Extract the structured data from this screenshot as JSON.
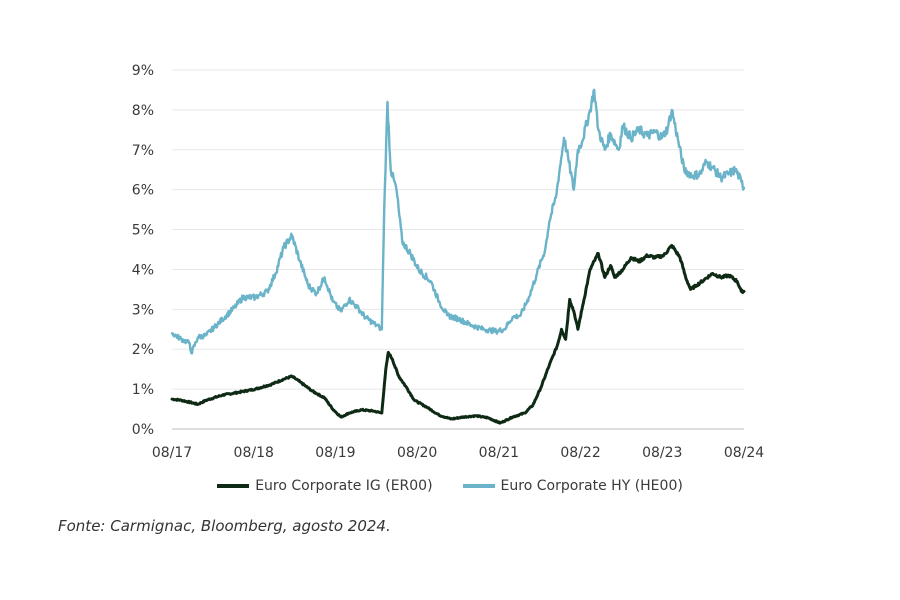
{
  "chart_data": {
    "type": "line",
    "title": "",
    "xlabel": "",
    "ylabel": "",
    "ylim": [
      0,
      9
    ],
    "xlim": [
      2017.583,
      2024.583
    ],
    "yticks": [
      "0%",
      "1%",
      "2%",
      "3%",
      "4%",
      "5%",
      "6%",
      "7%",
      "8%",
      "9%"
    ],
    "xticks": [
      {
        "label": "08/17",
        "t": 2017.583
      },
      {
        "label": "08/18",
        "t": 2018.583
      },
      {
        "label": "08/19",
        "t": 2019.583
      },
      {
        "label": "08/20",
        "t": 2020.583
      },
      {
        "label": "08/21",
        "t": 2021.583
      },
      {
        "label": "08/22",
        "t": 2022.583
      },
      {
        "label": "08/23",
        "t": 2023.583
      },
      {
        "label": "08/24",
        "t": 2024.583
      }
    ],
    "gridlines": "horizontal",
    "legend_position": "bottom",
    "series": [
      {
        "name": "Euro Corporate IG (ER00)",
        "color": "#0f2a14",
        "points": [
          [
            2017.583,
            0.75
          ],
          [
            2017.7,
            0.72
          ],
          [
            2017.9,
            0.62
          ],
          [
            2018.0,
            0.72
          ],
          [
            2018.2,
            0.85
          ],
          [
            2018.4,
            0.92
          ],
          [
            2018.6,
            1.0
          ],
          [
            2018.8,
            1.12
          ],
          [
            2018.95,
            1.25
          ],
          [
            2019.05,
            1.32
          ],
          [
            2019.15,
            1.18
          ],
          [
            2019.3,
            0.95
          ],
          [
            2019.45,
            0.78
          ],
          [
            2019.55,
            0.5
          ],
          [
            2019.65,
            0.3
          ],
          [
            2019.75,
            0.4
          ],
          [
            2019.9,
            0.48
          ],
          [
            2020.05,
            0.45
          ],
          [
            2020.15,
            0.4
          ],
          [
            2020.2,
            1.5
          ],
          [
            2020.23,
            1.92
          ],
          [
            2020.28,
            1.75
          ],
          [
            2020.35,
            1.35
          ],
          [
            2020.45,
            1.05
          ],
          [
            2020.55,
            0.72
          ],
          [
            2020.7,
            0.55
          ],
          [
            2020.85,
            0.35
          ],
          [
            2021.0,
            0.25
          ],
          [
            2021.15,
            0.3
          ],
          [
            2021.3,
            0.33
          ],
          [
            2021.45,
            0.28
          ],
          [
            2021.6,
            0.15
          ],
          [
            2021.75,
            0.3
          ],
          [
            2021.9,
            0.4
          ],
          [
            2022.0,
            0.6
          ],
          [
            2022.1,
            1.05
          ],
          [
            2022.2,
            1.6
          ],
          [
            2022.3,
            2.1
          ],
          [
            2022.35,
            2.5
          ],
          [
            2022.4,
            2.25
          ],
          [
            2022.45,
            3.25
          ],
          [
            2022.5,
            2.95
          ],
          [
            2022.55,
            2.5
          ],
          [
            2022.6,
            3.0
          ],
          [
            2022.7,
            4.0
          ],
          [
            2022.8,
            4.4
          ],
          [
            2022.88,
            3.8
          ],
          [
            2022.95,
            4.1
          ],
          [
            2023.0,
            3.8
          ],
          [
            2023.1,
            4.0
          ],
          [
            2023.2,
            4.3
          ],
          [
            2023.3,
            4.2
          ],
          [
            2023.4,
            4.35
          ],
          [
            2023.5,
            4.3
          ],
          [
            2023.6,
            4.35
          ],
          [
            2023.7,
            4.6
          ],
          [
            2023.8,
            4.3
          ],
          [
            2023.87,
            3.8
          ],
          [
            2023.93,
            3.5
          ],
          [
            2024.0,
            3.6
          ],
          [
            2024.1,
            3.75
          ],
          [
            2024.2,
            3.9
          ],
          [
            2024.3,
            3.8
          ],
          [
            2024.4,
            3.85
          ],
          [
            2024.5,
            3.7
          ],
          [
            2024.55,
            3.45
          ],
          [
            2024.583,
            3.45
          ]
        ]
      },
      {
        "name": "Euro Corporate HY (HE00)",
        "color": "#6bb3c9",
        "points": [
          [
            2017.583,
            2.4
          ],
          [
            2017.7,
            2.25
          ],
          [
            2017.8,
            2.15
          ],
          [
            2017.82,
            1.9
          ],
          [
            2017.9,
            2.3
          ],
          [
            2018.0,
            2.35
          ],
          [
            2018.1,
            2.55
          ],
          [
            2018.2,
            2.75
          ],
          [
            2018.35,
            3.05
          ],
          [
            2018.45,
            3.3
          ],
          [
            2018.6,
            3.3
          ],
          [
            2018.75,
            3.45
          ],
          [
            2018.85,
            3.9
          ],
          [
            2018.95,
            4.55
          ],
          [
            2019.05,
            4.85
          ],
          [
            2019.15,
            4.2
          ],
          [
            2019.25,
            3.6
          ],
          [
            2019.35,
            3.4
          ],
          [
            2019.45,
            3.8
          ],
          [
            2019.55,
            3.2
          ],
          [
            2019.65,
            2.95
          ],
          [
            2019.75,
            3.25
          ],
          [
            2019.85,
            3.05
          ],
          [
            2019.95,
            2.8
          ],
          [
            2020.05,
            2.65
          ],
          [
            2020.12,
            2.55
          ],
          [
            2020.15,
            2.5
          ],
          [
            2020.18,
            5.5
          ],
          [
            2020.22,
            8.2
          ],
          [
            2020.26,
            6.5
          ],
          [
            2020.33,
            6.0
          ],
          [
            2020.4,
            4.7
          ],
          [
            2020.5,
            4.4
          ],
          [
            2020.6,
            4.0
          ],
          [
            2020.75,
            3.7
          ],
          [
            2020.85,
            3.2
          ],
          [
            2020.95,
            2.85
          ],
          [
            2021.1,
            2.75
          ],
          [
            2021.25,
            2.6
          ],
          [
            2021.4,
            2.5
          ],
          [
            2021.55,
            2.45
          ],
          [
            2021.65,
            2.5
          ],
          [
            2021.75,
            2.8
          ],
          [
            2021.85,
            2.85
          ],
          [
            2021.95,
            3.3
          ],
          [
            2022.05,
            3.9
          ],
          [
            2022.15,
            4.5
          ],
          [
            2022.2,
            5.2
          ],
          [
            2022.28,
            5.8
          ],
          [
            2022.38,
            7.3
          ],
          [
            2022.43,
            6.8
          ],
          [
            2022.5,
            6.0
          ],
          [
            2022.55,
            7.0
          ],
          [
            2022.6,
            7.2
          ],
          [
            2022.7,
            8.0
          ],
          [
            2022.75,
            8.5
          ],
          [
            2022.8,
            7.5
          ],
          [
            2022.88,
            7.0
          ],
          [
            2022.95,
            7.4
          ],
          [
            2023.05,
            7.0
          ],
          [
            2023.1,
            7.6
          ],
          [
            2023.2,
            7.3
          ],
          [
            2023.3,
            7.5
          ],
          [
            2023.4,
            7.35
          ],
          [
            2023.5,
            7.45
          ],
          [
            2023.58,
            7.3
          ],
          [
            2023.65,
            7.55
          ],
          [
            2023.7,
            8.0
          ],
          [
            2023.78,
            7.2
          ],
          [
            2023.85,
            6.5
          ],
          [
            2023.95,
            6.35
          ],
          [
            2024.05,
            6.4
          ],
          [
            2024.12,
            6.7
          ],
          [
            2024.2,
            6.55
          ],
          [
            2024.3,
            6.3
          ],
          [
            2024.4,
            6.4
          ],
          [
            2024.48,
            6.5
          ],
          [
            2024.55,
            6.2
          ],
          [
            2024.583,
            6.05
          ]
        ]
      }
    ]
  },
  "source_note": "Fonte: Carmignac, Bloomberg, agosto 2024."
}
